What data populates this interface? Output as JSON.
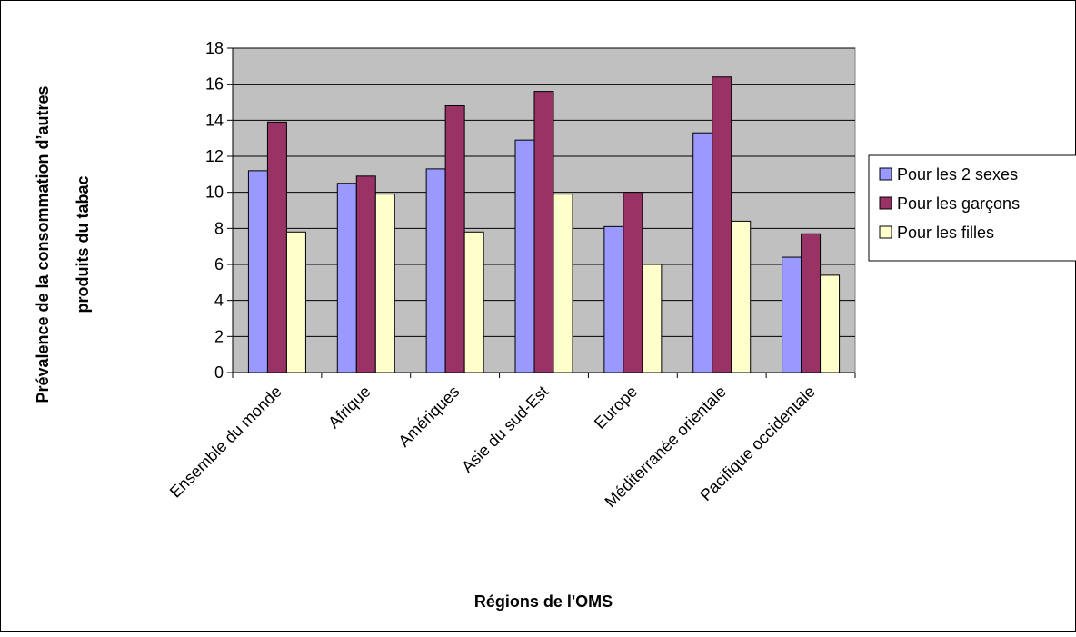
{
  "chart_data": {
    "type": "bar",
    "title": "",
    "xlabel": "Régions de l'OMS",
    "ylabel_line1": "Prévalence de la consommation d’autres",
    "ylabel_line2": "produits du tabac",
    "ylim": [
      0,
      18
    ],
    "yticks": [
      0,
      2,
      4,
      6,
      8,
      10,
      12,
      14,
      16,
      18
    ],
    "grid": true,
    "legend_position": "right",
    "plot_background": "#c0c0c0",
    "categories": [
      "Ensemble du monde",
      "Afrique",
      "Amériques",
      "Asie du sud-Est",
      "Europe",
      "Méditerranée orientale",
      "Pacifique occidentale"
    ],
    "series": [
      {
        "name": "Pour les 2 sexes",
        "color": "#9999ff",
        "values": [
          11.2,
          10.5,
          11.3,
          12.9,
          8.1,
          13.3,
          6.4
        ]
      },
      {
        "name": "Pour les garçons",
        "color": "#993366",
        "values": [
          13.9,
          10.9,
          14.8,
          15.6,
          10.0,
          16.4,
          7.7
        ]
      },
      {
        "name": "Pour les filles",
        "color": "#ffffcc",
        "values": [
          7.8,
          9.9,
          7.8,
          9.9,
          6.0,
          8.4,
          5.4
        ]
      }
    ]
  }
}
